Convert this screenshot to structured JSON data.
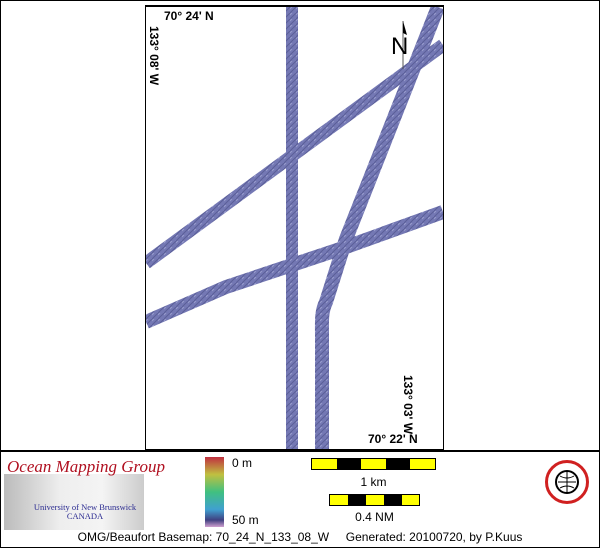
{
  "map": {
    "labels": {
      "top_lat": "70° 24' N",
      "left_lon": "133° 08' W",
      "right_lon": "133° 03' W",
      "bottom_lat": "70° 22' N"
    },
    "north_arrow": "N",
    "swath_color": "#7074b0"
  },
  "legend": {
    "org_name": "Ocean Mapping Group",
    "university": "University of New Brunswick",
    "country": "CANADA",
    "depth_min": "0 m",
    "depth_max": "50 m",
    "scale_km": "1 km",
    "scale_nm": "0.4 NM",
    "seal_icon": "unb-geodesy-seal"
  },
  "footer": {
    "basemap": "OMG/Beaufort Basemap: 70_24_N_133_08_W",
    "generated": "Generated: 20100720, by P.Kuus"
  }
}
